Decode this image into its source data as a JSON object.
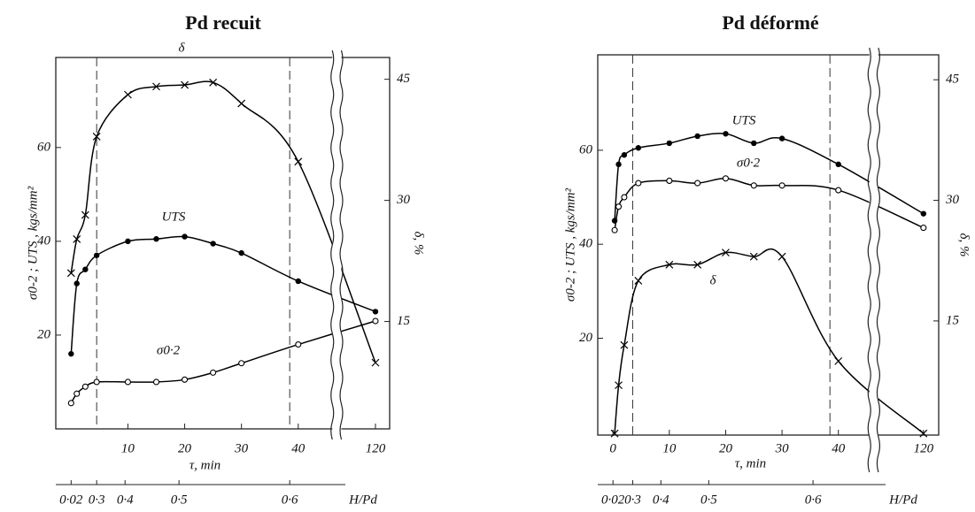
{
  "chart_data": [
    {
      "type": "line",
      "title": "Pd recuit",
      "x_label": "τ, min",
      "y_label": "σ0-2 ; UTS , kgs/mm²",
      "y2_label": "δ, %",
      "x": [
        0,
        1,
        2.5,
        4.5,
        10,
        15,
        20,
        25,
        30,
        40,
        120
      ],
      "xlim": [
        -2.7,
        122.5
      ],
      "xbreak": [
        46,
        114
      ],
      "xticks": [
        10,
        20,
        30,
        40,
        120
      ],
      "ylim": [
        0,
        79.2
      ],
      "yticks": [
        20,
        40,
        60
      ],
      "y2lim": [
        1.7,
        47.7
      ],
      "y2ticks": [
        15,
        30,
        45
      ],
      "dashed_x": [
        4.5,
        38.5
      ],
      "h_label": "H/Pd",
      "h_ticks": [
        {
          "value": 0.02,
          "label": "0·02",
          "x": 0
        },
        {
          "value": 0.3,
          "label": "0·3",
          "x": 4.5
        },
        {
          "value": 0.4,
          "label": "0·4",
          "x": 9.5
        },
        {
          "value": 0.5,
          "label": "0·5",
          "x": 19
        },
        {
          "value": 0.6,
          "label": "0·6",
          "x": 38.5
        }
      ],
      "series": [
        {
          "name": "δ",
          "marker": "x",
          "color": "#000000",
          "axis": "y2",
          "values": [
            21,
            25.2,
            28.2,
            37.9,
            43.1,
            44.1,
            44.3,
            44.6,
            42,
            34.8,
            9.9
          ]
        },
        {
          "name": "UTS",
          "marker": "dot",
          "color": "#000000",
          "values": [
            16,
            31,
            34,
            37,
            40,
            40.5,
            41,
            39.5,
            37.5,
            31.5,
            25
          ]
        },
        {
          "name": "σ0·2",
          "marker": "circle",
          "color": "#000000",
          "values": [
            5.5,
            7.5,
            9,
            10,
            10,
            10,
            10.5,
            12,
            14,
            18,
            23
          ]
        }
      ]
    },
    {
      "type": "line",
      "title": "Pd déformé",
      "x_label": "τ, min",
      "y_label": "σ0-2 ; UTS , kgs/mm²",
      "y2_label": "δ, %",
      "x": [
        0.3,
        1,
        2,
        4.5,
        10,
        15,
        20,
        25,
        30,
        40,
        120
      ],
      "xlim": [
        -2.7,
        122.7
      ],
      "xbreak": [
        45.5,
        112
      ],
      "xticks": [
        0,
        10,
        20,
        30,
        40,
        120
      ],
      "ylim": [
        -0.6,
        80.3
      ],
      "yticks": [
        20,
        40,
        60
      ],
      "y2lim": [
        0.8,
        48.1
      ],
      "y2ticks": [
        15,
        30,
        45
      ],
      "dashed_x": [
        3.5,
        38.5
      ],
      "h_label": "H/Pd",
      "h_ticks": [
        {
          "value": 0.02,
          "label": "0·02",
          "x": 0
        },
        {
          "value": 0.3,
          "label": "0·3",
          "x": 3.5
        },
        {
          "value": 0.4,
          "label": "0·4",
          "x": 8.5
        },
        {
          "value": 0.5,
          "label": "0·5",
          "x": 17
        },
        {
          "value": 0.6,
          "label": "0·6",
          "x": 35.5
        }
      ],
      "series": [
        {
          "name": "UTS",
          "marker": "dot",
          "color": "#000000",
          "values": [
            45,
            57,
            59,
            60.5,
            61.5,
            63,
            63.5,
            61.5,
            62.5,
            57,
            46.5
          ]
        },
        {
          "name": "σ0·2",
          "marker": "circle",
          "color": "#000000",
          "values": [
            43,
            48,
            50,
            53,
            53.5,
            53,
            54,
            52.5,
            52.5,
            51.5,
            43.5
          ]
        },
        {
          "name": "δ",
          "marker": "x",
          "color": "#000000",
          "axis": "y2",
          "values": [
            1,
            7,
            12,
            20,
            22,
            22,
            23.5,
            23,
            23,
            10,
            1
          ]
        }
      ]
    }
  ]
}
